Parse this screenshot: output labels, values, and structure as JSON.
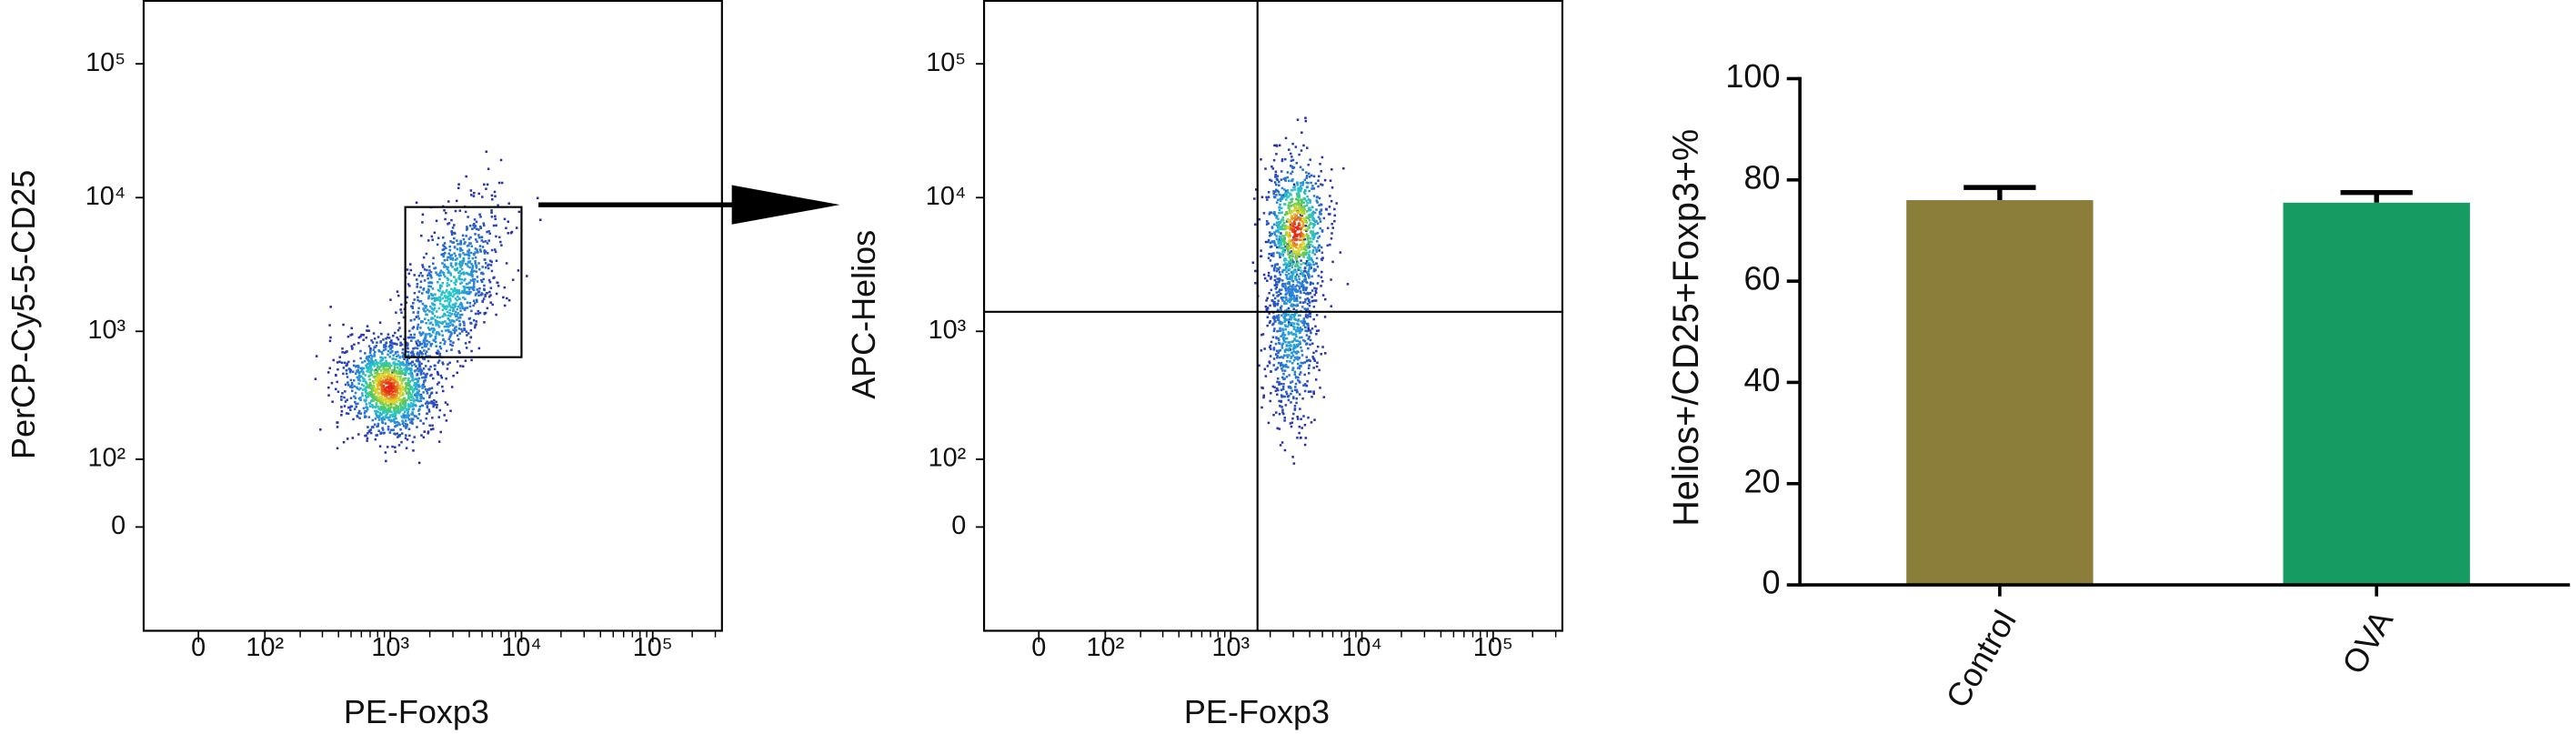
{
  "chart_data": [
    {
      "type": "density",
      "scale": "logicle",
      "xlabel": "PE-Foxp3",
      "ylabel": "PerCP-Cy5-5-CD25",
      "xlim": [
        -77,
        337000
      ],
      "ylim": [
        -200,
        300000
      ],
      "xticks": [
        0,
        {
          "value": 100,
          "label": "10²"
        },
        {
          "value": 1000,
          "label": "10³"
        },
        {
          "value": 10000,
          "label": "10⁴"
        },
        {
          "value": 100000,
          "label": "10⁵"
        }
      ],
      "yticks": [
        0,
        {
          "value": 100,
          "label": "10²"
        },
        {
          "value": 1000,
          "label": "10³"
        },
        {
          "value": 10000,
          "label": "10⁴"
        },
        {
          "value": 100000,
          "label": "10⁵"
        }
      ],
      "gate": {
        "x": [
          1300,
          10000
        ],
        "y": [
          640,
          8500
        ]
      }
    },
    {
      "type": "density",
      "scale": "logicle",
      "xlabel": "PE-Foxp3",
      "ylabel": "APC-Helios",
      "xlim": [
        -77,
        337000
      ],
      "ylim": [
        -200,
        300000
      ],
      "xticks": [
        0,
        {
          "value": 100,
          "label": "10²"
        },
        {
          "value": 1000,
          "label": "10³"
        },
        {
          "value": 10000,
          "label": "10⁴"
        },
        {
          "value": 100000,
          "label": "10⁵"
        }
      ],
      "yticks": [
        0,
        {
          "value": 100,
          "label": "10²"
        },
        {
          "value": 1000,
          "label": "10³"
        },
        {
          "value": 10000,
          "label": "10⁴"
        },
        {
          "value": 100000,
          "label": "10⁵"
        }
      ],
      "quadrant": {
        "x": 1600,
        "y": 1400
      }
    },
    {
      "type": "bar",
      "ylabel": "Helios+/CD25+Foxp3+%",
      "categories": [
        "Control",
        "OVA"
      ],
      "values": [
        76,
        75.5
      ],
      "errors": [
        2.5,
        2
      ],
      "colors": [
        "#8b7d3a",
        "#169b62"
      ],
      "ylim": [
        0,
        100
      ],
      "yticks": [
        0,
        20,
        40,
        60,
        80,
        100
      ]
    }
  ]
}
